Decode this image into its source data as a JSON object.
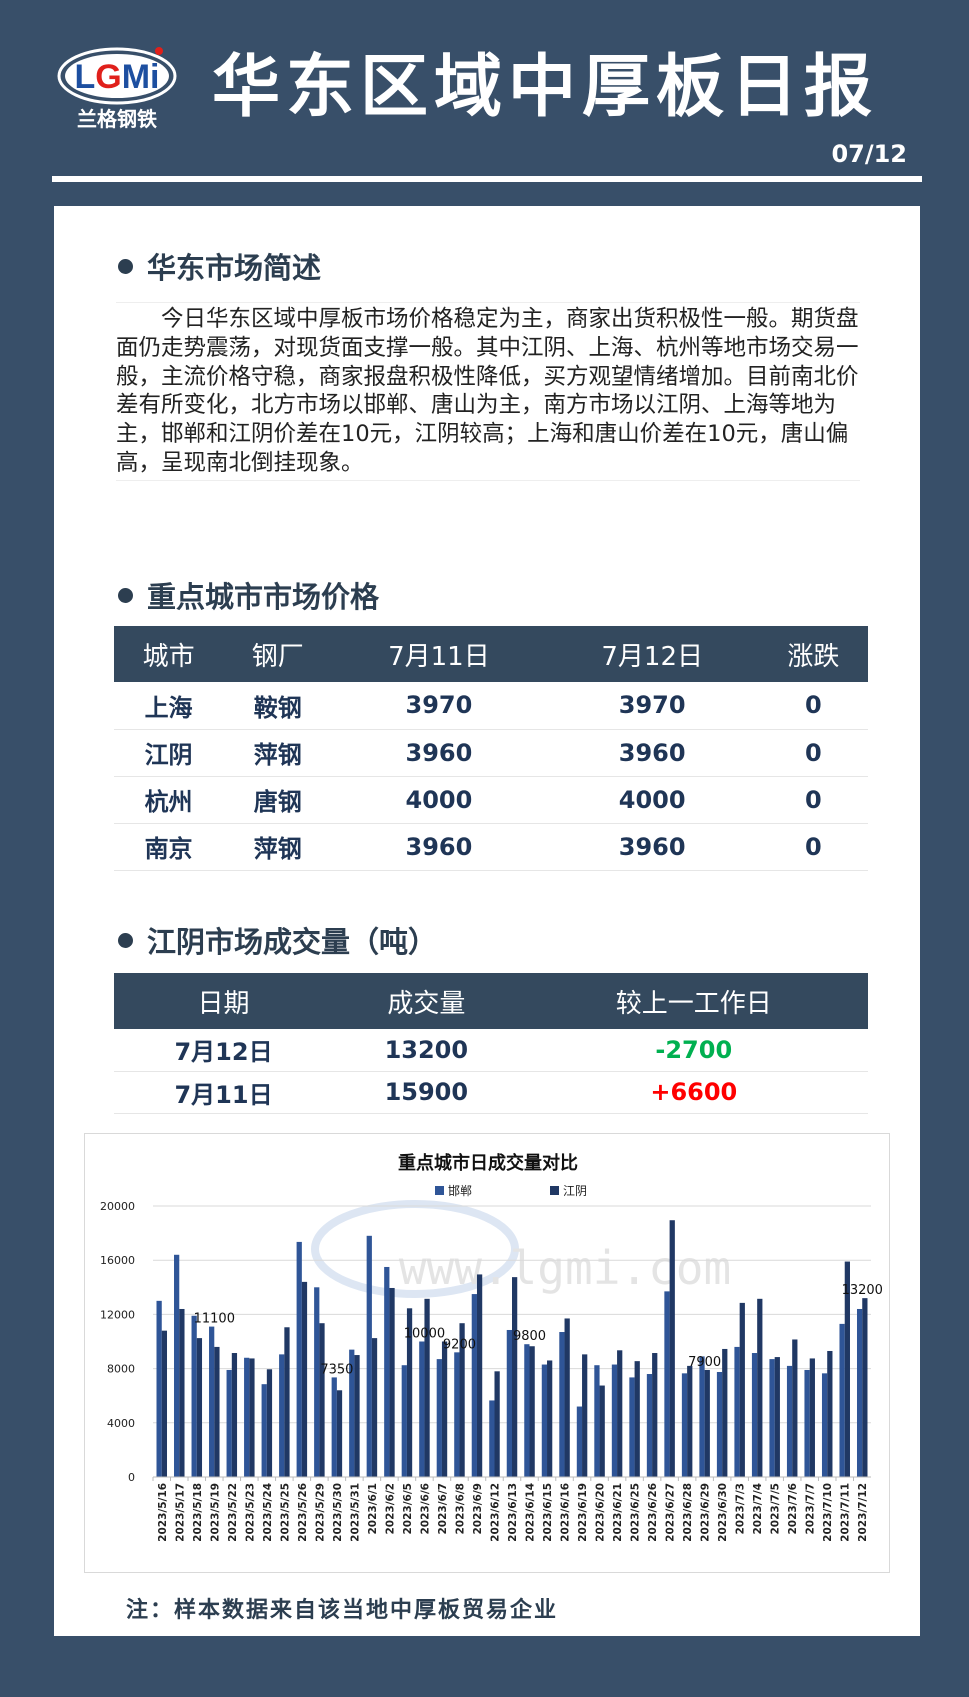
{
  "header": {
    "logo_text": "LGMi",
    "logo_subtitle": "兰格钢铁",
    "title": "华东区域中厚板日报",
    "date": "07/12"
  },
  "summary": {
    "heading": "华东市场简述",
    "text": "今日华东区域中厚板市场价格稳定为主，商家出货积极性一般。期货盘面仍走势震荡，对现货面支撑一般。其中江阴、上海、杭州等地市场交易一般，主流价格守稳，商家报盘积极性降低，买方观望情绪增加。目前南北价差有所变化，北方市场以邯郸、唐山为主，南方市场以江阴、上海等地为主，邯郸和江阴价差在10元，江阴较高；上海和唐山价差在10元，唐山偏高，呈现南北倒挂现象。"
  },
  "prices": {
    "heading": "重点城市市场价格",
    "columns": [
      "城市",
      "钢厂",
      "7月11日",
      "7月12日",
      "涨跌"
    ],
    "rows": [
      [
        "上海",
        "鞍钢",
        "3970",
        "3970",
        "0"
      ],
      [
        "江阴",
        "萍钢",
        "3960",
        "3960",
        "0"
      ],
      [
        "杭州",
        "唐钢",
        "4000",
        "4000",
        "0"
      ],
      [
        "南京",
        "萍钢",
        "3960",
        "3960",
        "0"
      ]
    ]
  },
  "volume": {
    "heading": "江阴市场成交量（吨）",
    "columns": [
      "日期",
      "成交量",
      "较上一工作日"
    ],
    "rows": [
      [
        "7月12日",
        "13200",
        "-2700"
      ],
      [
        "7月11日",
        "15900",
        "+6600"
      ]
    ],
    "colors": {
      "down": "#00b050",
      "up": "#ff0000"
    }
  },
  "chart_data": {
    "type": "bar",
    "title": "重点城市日成交量对比",
    "ylim": [
      0,
      20000
    ],
    "yticks": [
      0,
      4000,
      8000,
      12000,
      16000,
      20000
    ],
    "grid": true,
    "legend": "top",
    "categories": [
      "2023/5/16",
      "2023/5/17",
      "2023/5/18",
      "2023/5/19",
      "2023/5/22",
      "2023/5/23",
      "2023/5/24",
      "2023/5/25",
      "2023/5/26",
      "2023/5/29",
      "2023/5/30",
      "2023/5/31",
      "2023/6/1",
      "2023/6/2",
      "2023/6/5",
      "2023/6/6",
      "2023/6/7",
      "2023/6/8",
      "2023/6/9",
      "2023/6/12",
      "2023/6/13",
      "2023/6/14",
      "2023/6/15",
      "2023/6/16",
      "2023/6/19",
      "2023/6/20",
      "2023/6/21",
      "2023/6/25",
      "2023/6/26",
      "2023/6/27",
      "2023/6/28",
      "2023/6/29",
      "2023/6/30",
      "2023/7/3",
      "2023/7/4",
      "2023/7/5",
      "2023/7/6",
      "2023/7/7",
      "2023/7/10",
      "2023/7/11",
      "2023/7/12"
    ],
    "series": [
      {
        "name": "邯郸",
        "color": "#2f5597",
        "values": [
          13000,
          16400,
          11900,
          11100,
          7900,
          8800,
          6850,
          9050,
          17350,
          14000,
          7350,
          9400,
          17800,
          15500,
          8250,
          10000,
          8700,
          9200,
          13500,
          5650,
          10850,
          9800,
          8300,
          10700,
          5200,
          8250,
          8300,
          7350,
          7600,
          13700,
          7650,
          8900,
          7750,
          9600,
          9150,
          8700,
          8200,
          7900,
          7650,
          11300,
          12400
        ]
      },
      {
        "name": "江阴",
        "color": "#203864",
        "values": [
          10800,
          12400,
          10250,
          9600,
          9150,
          8750,
          7950,
          11050,
          14400,
          11350,
          6400,
          9000,
          10250,
          13950,
          12450,
          13150,
          10000,
          11350,
          14950,
          7800,
          14750,
          9650,
          8600,
          11700,
          9050,
          6750,
          9350,
          8550,
          9150,
          18950,
          8200,
          7900,
          9450,
          12850,
          13150,
          8850,
          10150,
          8750,
          9300,
          15900,
          13200
        ]
      }
    ],
    "data_labels": [
      {
        "category": "2023/5/19",
        "series": "邯郸",
        "text": "11100"
      },
      {
        "category": "2023/5/30",
        "series": "邯郸",
        "text": "7350"
      },
      {
        "category": "2023/6/6",
        "series": "邯郸",
        "text": "10000"
      },
      {
        "category": "2023/6/8",
        "series": "邯郸",
        "text": "9200"
      },
      {
        "category": "2023/6/14",
        "series": "邯郸",
        "text": "9800"
      },
      {
        "category": "2023/6/29",
        "series": "江阴",
        "text": "7900"
      },
      {
        "category": "2023/7/12",
        "series": "江阴",
        "text": "13200"
      }
    ],
    "watermark": "www.lgmi.com"
  },
  "footer": {
    "note": "注：样本数据来自该当地中厚板贸易企业"
  }
}
